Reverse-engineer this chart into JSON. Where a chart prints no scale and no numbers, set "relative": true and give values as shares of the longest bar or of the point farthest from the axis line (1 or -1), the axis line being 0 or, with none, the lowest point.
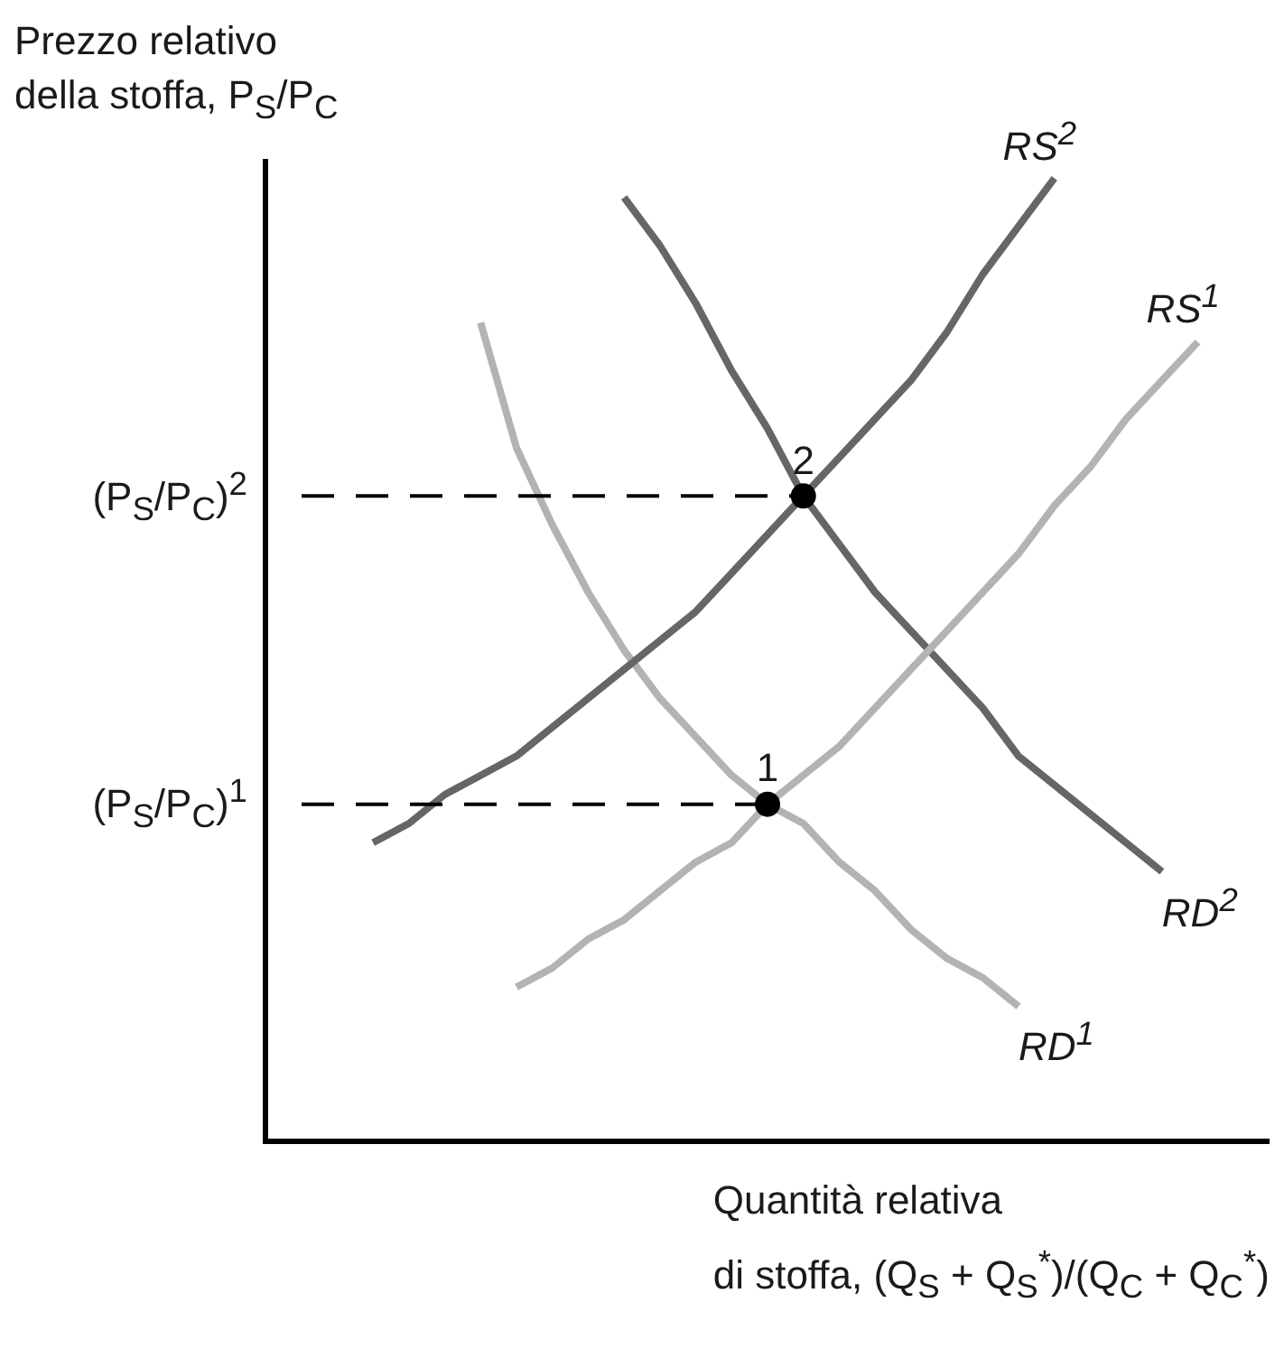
{
  "chart_data": {
    "type": "line",
    "relative": true,
    "legend": false,
    "ylabel": "Prezzo relativo\ndella stoffa, P$_{S}$/P$_{C}$",
    "xlabel": "Quantità relativa\ndi stoffa, (Q$_{S}$ + Q$_{S}$$^{*}$)/(Q$_{C}$ + Q$_{C}$$^{*}$)",
    "categories": [
      null,
      null,
      null,
      null,
      null,
      null,
      null,
      null,
      null,
      null,
      null,
      null,
      null,
      null,
      null,
      null,
      null,
      null,
      null,
      null,
      null,
      null,
      null,
      null,
      null,
      null,
      null,
      null,
      null
    ],
    "series": [
      {
        "name": "RS$^{2}$",
        "color": "#666666",
        "marker": "none",
        "values": [
          null,
          null,
          null,
          0.31,
          0.33,
          0.36,
          0.38,
          0.4,
          0.43,
          0.46,
          0.49,
          0.52,
          0.55,
          0.59,
          0.63,
          0.67,
          0.71,
          0.75,
          0.79,
          0.84,
          0.9,
          0.95,
          1.0,
          null,
          null,
          null,
          null,
          null,
          null
        ]
      },
      {
        "name": "RS$^{1}$",
        "color": "#b3b3b3",
        "marker": "none",
        "values": [
          null,
          null,
          null,
          null,
          null,
          null,
          null,
          0.16,
          0.18,
          0.21,
          0.23,
          0.26,
          0.29,
          0.31,
          0.35,
          0.38,
          0.41,
          0.45,
          0.49,
          0.53,
          0.57,
          0.61,
          0.66,
          0.7,
          0.75,
          0.79,
          0.83,
          null,
          null
        ]
      },
      {
        "name": "RD$^{1}$",
        "color": "#b3b3b3",
        "marker": "none",
        "values": [
          null,
          null,
          null,
          null,
          null,
          null,
          0.85,
          0.72,
          0.64,
          0.57,
          0.51,
          0.46,
          0.42,
          0.38,
          0.35,
          0.33,
          0.29,
          0.26,
          0.22,
          0.19,
          0.17,
          0.14,
          null,
          null,
          null,
          null,
          null,
          null,
          null
        ]
      },
      {
        "name": "RD$^{2}$",
        "color": "#666666",
        "marker": "none",
        "values": [
          null,
          null,
          null,
          null,
          null,
          null,
          null,
          null,
          null,
          null,
          0.98,
          0.93,
          0.87,
          0.8,
          0.74,
          0.67,
          0.62,
          0.57,
          0.53,
          0.49,
          0.45,
          0.4,
          0.37,
          0.34,
          0.31,
          0.28,
          null,
          null,
          null
        ]
      }
    ],
    "annotations": [
      {
        "text": "2",
        "y": 0.67
      },
      {
        "text": "1",
        "y": 0.35
      }
    ],
    "ref_lines": [
      {
        "axis": "y",
        "value": 0.67,
        "label": "(P$_{S}$/P$_{C}$)$^{2}$",
        "color": "#000000",
        "line_style": "dashed"
      },
      {
        "axis": "y",
        "value": 0.35,
        "label": "(P$_{S}$/P$_{C}$)$^{1}$",
        "color": "#000000",
        "line_style": "dashed"
      }
    ]
  }
}
